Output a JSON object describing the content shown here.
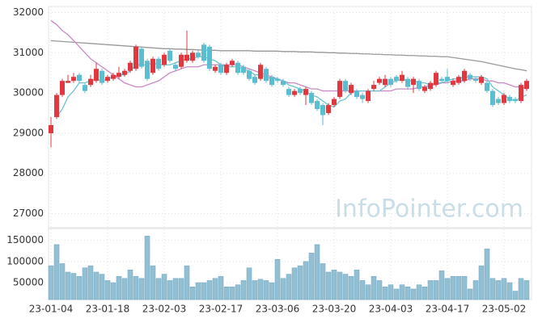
{
  "chart_data": {
    "type": "candlestick",
    "watermark": "InfoPointer.com",
    "categories": [
      "23-01-04",
      null,
      null,
      null,
      null,
      null,
      null,
      null,
      null,
      null,
      "23-01-18",
      null,
      null,
      null,
      null,
      null,
      null,
      null,
      null,
      null,
      "23-02-03",
      null,
      null,
      null,
      null,
      null,
      null,
      null,
      null,
      null,
      "23-02-17",
      null,
      null,
      null,
      null,
      null,
      null,
      null,
      null,
      null,
      "23-03-06",
      null,
      null,
      null,
      null,
      null,
      null,
      null,
      null,
      null,
      "23-03-20",
      null,
      null,
      null,
      null,
      null,
      null,
      null,
      null,
      null,
      "23-04-03",
      null,
      null,
      null,
      null,
      null,
      null,
      null,
      null,
      null,
      "23-04-17",
      null,
      null,
      null,
      null,
      null,
      null,
      null,
      null,
      null,
      "23-05-02",
      null,
      null,
      null,
      null
    ],
    "open": [
      29000,
      29400,
      29950,
      30250,
      30300,
      30450,
      30200,
      30200,
      30300,
      30550,
      30300,
      30350,
      30400,
      30450,
      30550,
      30600,
      31100,
      30800,
      30500,
      30850,
      30700,
      31050,
      30700,
      30650,
      30800,
      30800,
      31000,
      31200,
      31150,
      30550,
      30700,
      30500,
      30700,
      30750,
      30650,
      30550,
      30400,
      30350,
      30600,
      30400,
      30350,
      30300,
      30100,
      29950,
      30100,
      29950,
      30000,
      29800,
      29700,
      29500,
      29700,
      29900,
      30300,
      30000,
      30050,
      29950,
      29800,
      30100,
      30250,
      30200,
      30350,
      30400,
      30300,
      30350,
      30200,
      30300,
      30050,
      30100,
      30200,
      30350,
      30400,
      30200,
      30250,
      30300,
      30450,
      30350,
      30250,
      30250,
      30050,
      29850,
      29750,
      29900,
      29850,
      29800,
      30100
    ],
    "high": [
      29400,
      30000,
      30350,
      30450,
      30500,
      30500,
      30250,
      30450,
      30750,
      30600,
      30450,
      30500,
      30650,
      30600,
      30800,
      31200,
      31150,
      30850,
      30900,
      30900,
      31000,
      31100,
      30750,
      31000,
      31550,
      31050,
      31050,
      31250,
      31200,
      30700,
      30750,
      30750,
      30850,
      30800,
      30700,
      30600,
      30450,
      30750,
      30650,
      30450,
      30400,
      30350,
      30150,
      30100,
      30150,
      30150,
      30050,
      29850,
      29750,
      29750,
      29900,
      30350,
      30350,
      30250,
      30100,
      30000,
      30100,
      30300,
      30400,
      30450,
      30400,
      30450,
      30550,
      30400,
      30400,
      30350,
      30200,
      30300,
      30550,
      30400,
      30600,
      30350,
      30450,
      30600,
      30500,
      30400,
      30450,
      30300,
      30100,
      29900,
      30000,
      29950,
      29900,
      30250,
      30350
    ],
    "low": [
      28650,
      29350,
      29900,
      30250,
      30250,
      30250,
      30000,
      30150,
      30250,
      30200,
      30250,
      30300,
      30350,
      30400,
      30500,
      30550,
      30600,
      30300,
      30450,
      30550,
      30650,
      30750,
      30550,
      30600,
      30750,
      30750,
      30850,
      30750,
      30550,
      30500,
      30450,
      30450,
      30650,
      30450,
      30450,
      30300,
      30200,
      30300,
      30250,
      30150,
      30250,
      30150,
      29900,
      29900,
      29950,
      29700,
      29700,
      29550,
      29200,
      29450,
      29650,
      29850,
      30000,
      29950,
      29850,
      29750,
      29750,
      30050,
      30200,
      30150,
      30150,
      30250,
      30250,
      30100,
      30000,
      30050,
      30000,
      30050,
      30150,
      30250,
      30250,
      30150,
      30200,
      30250,
      30300,
      30250,
      30200,
      30000,
      29650,
      29700,
      29700,
      29750,
      29750,
      29750,
      30050
    ],
    "close": [
      29200,
      29950,
      30300,
      30300,
      30400,
      30300,
      30050,
      30350,
      30600,
      30250,
      30400,
      30450,
      30500,
      30550,
      30750,
      31150,
      30650,
      30350,
      30850,
      30600,
      30950,
      30800,
      30600,
      30950,
      30950,
      31000,
      30900,
      30800,
      30600,
      30650,
      30500,
      30700,
      30800,
      30500,
      30500,
      30350,
      30250,
      30700,
      30300,
      30200,
      30300,
      30200,
      29950,
      30050,
      30000,
      30100,
      29750,
      29600,
      29450,
      29700,
      29850,
      30300,
      30050,
      30200,
      29900,
      29850,
      30050,
      30200,
      30350,
      30350,
      30200,
      30300,
      30450,
      30150,
      30350,
      30100,
      30150,
      30250,
      30500,
      30300,
      30300,
      30300,
      30400,
      30550,
      30350,
      30300,
      30400,
      30050,
      29700,
      29750,
      29950,
      29800,
      29800,
      30200,
      30300
    ],
    "up_color": "#e0383e",
    "down_color": "#5bbdd0",
    "ma": [
      {
        "color": "#999999",
        "values": [
          31300,
          31290,
          31280,
          31270,
          31260,
          31250,
          31240,
          31230,
          31220,
          31210,
          31200,
          31190,
          31180,
          31170,
          31160,
          31150,
          31140,
          31130,
          31120,
          31110,
          31100,
          31100,
          31090,
          31090,
          31080,
          31080,
          31070,
          31070,
          31060,
          31060,
          31050,
          31050,
          31050,
          31050,
          31050,
          31050,
          31040,
          31040,
          31040,
          31040,
          31040,
          31030,
          31030,
          31030,
          31020,
          31020,
          31020,
          31010,
          31010,
          31000,
          31000,
          30990,
          30990,
          30980,
          30980,
          30970,
          30970,
          30960,
          30960,
          30950,
          30950,
          30940,
          30940,
          30930,
          30930,
          30920,
          30920,
          30910,
          30910,
          30900,
          30900,
          30880,
          30860,
          30840,
          30820,
          30800,
          30780,
          30750,
          30720,
          30690,
          30660,
          30630,
          30600,
          30580,
          30550
        ]
      },
      {
        "color": "#cc88c4",
        "values": [
          31800,
          31700,
          31550,
          31450,
          31300,
          31150,
          31000,
          30850,
          30750,
          30650,
          30550,
          30450,
          30350,
          30250,
          30200,
          30150,
          30150,
          30200,
          30250,
          30300,
          30400,
          30500,
          30550,
          30600,
          30650,
          30650,
          30650,
          30700,
          30700,
          30700,
          30700,
          30700,
          30700,
          30700,
          30650,
          30600,
          30550,
          30500,
          30450,
          30400,
          30350,
          30300,
          30250,
          30250,
          30200,
          30150,
          30100,
          30100,
          30050,
          30050,
          30050,
          30050,
          30050,
          30050,
          30050,
          30050,
          30050,
          30050,
          30050,
          30050,
          30050,
          30100,
          30100,
          30100,
          30100,
          30150,
          30150,
          30200,
          30200,
          30250,
          30250,
          30300,
          30300,
          30300,
          30350,
          30350,
          30350,
          30300,
          30300,
          30250,
          30250,
          30200,
          30150,
          30150,
          30100
        ]
      },
      {
        "color": "#6cc3cf",
        "values": [
          null,
          29400,
          29600,
          29900,
          30050,
          30250,
          30250,
          30300,
          30350,
          30300,
          30350,
          30400,
          30450,
          30450,
          30550,
          30700,
          30700,
          30700,
          30750,
          30700,
          30700,
          30700,
          30750,
          30800,
          30850,
          30850,
          30900,
          30900,
          30850,
          30800,
          30700,
          30650,
          30650,
          30650,
          30600,
          30550,
          30450,
          30450,
          30400,
          30350,
          30350,
          30300,
          30200,
          30150,
          30100,
          30050,
          29950,
          29900,
          29800,
          29700,
          29650,
          29800,
          29850,
          30000,
          30050,
          30050,
          30050,
          30050,
          30050,
          30150,
          30250,
          30300,
          30350,
          30300,
          30300,
          30250,
          30250,
          30200,
          30250,
          30250,
          30300,
          30350,
          30350,
          30400,
          30400,
          30400,
          30400,
          30350,
          30150,
          30050,
          29950,
          29850,
          29800,
          29900,
          29950
        ]
      }
    ],
    "ylim": [
      26650,
      32150
    ],
    "yticks": [
      27000,
      28000,
      29000,
      30000,
      31000,
      32000
    ],
    "volume": {
      "color": "#93bfd3",
      "values": [
        90000,
        140000,
        95000,
        75000,
        72000,
        65000,
        85000,
        90000,
        75000,
        70000,
        55000,
        50000,
        65000,
        60000,
        80000,
        65000,
        60000,
        160000,
        90000,
        60000,
        70000,
        55000,
        60000,
        60000,
        90000,
        40000,
        50000,
        50000,
        55000,
        60000,
        65000,
        40000,
        40000,
        45000,
        55000,
        85000,
        55000,
        58000,
        55000,
        50000,
        105000,
        60000,
        70000,
        85000,
        90000,
        100000,
        120000,
        140000,
        95000,
        75000,
        80000,
        75000,
        70000,
        65000,
        80000,
        55000,
        45000,
        65000,
        55000,
        40000,
        45000,
        35000,
        45000,
        40000,
        35000,
        45000,
        40000,
        55000,
        55000,
        78000,
        60000,
        65000,
        65000,
        65000,
        35000,
        55000,
        90000,
        130000,
        60000,
        55000,
        60000,
        50000,
        30000,
        60000,
        55000
      ],
      "ylim": [
        10000,
        178000
      ],
      "yticks": [
        50000,
        100000,
        150000
      ]
    },
    "grid": true
  }
}
